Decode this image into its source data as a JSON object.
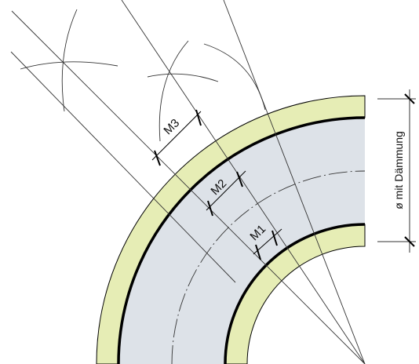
{
  "colors": {
    "insulation": "#e6edb5",
    "pipe": "#dde2e8",
    "wall": "#000000",
    "construction_line": "#333333",
    "background": "#ffffff"
  },
  "labels": {
    "m1": "M1",
    "m2": "M2",
    "m3": "M3",
    "diameter": "ø mit Dämmung"
  }
}
